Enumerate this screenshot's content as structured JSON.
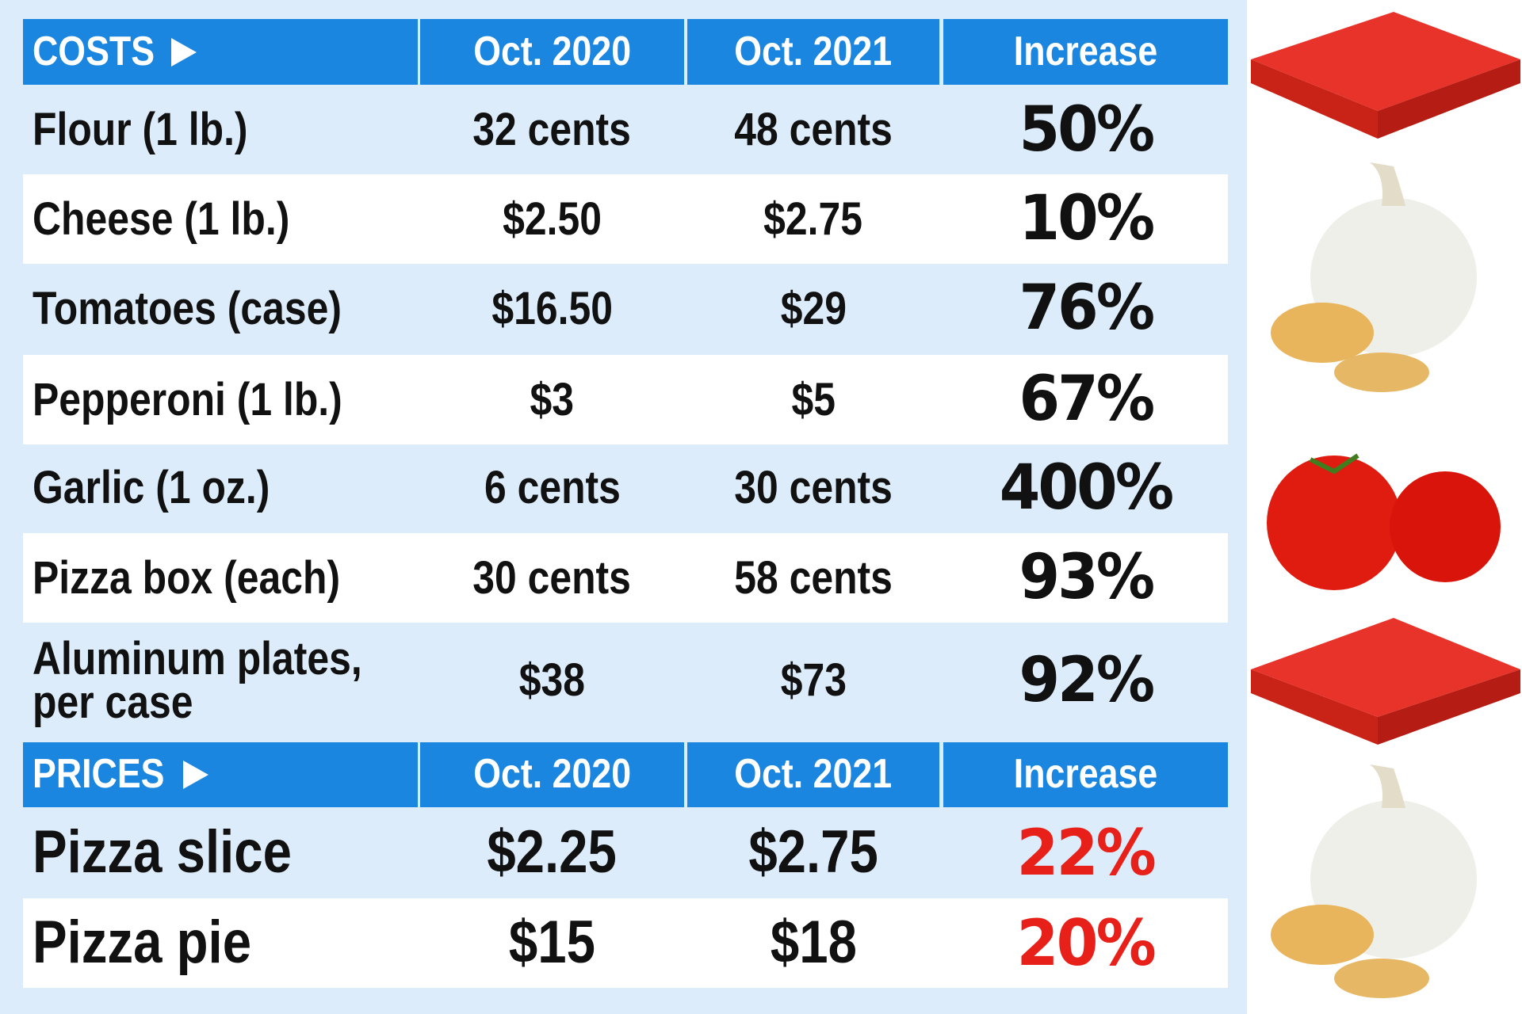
{
  "costs": {
    "header": [
      "COSTS",
      "Oct. 2020",
      "Oct. 2021",
      "Increase"
    ],
    "rows": [
      [
        "Flour (1 lb.)",
        "32 cents",
        "48 cents",
        "50%"
      ],
      [
        "Cheese (1 lb.)",
        "$2.50",
        "$2.75",
        "10%"
      ],
      [
        "Tomatoes (case)",
        "$16.50",
        "$29",
        "76%"
      ],
      [
        "Pepperoni (1 lb.)",
        "$3",
        "$5",
        "67%"
      ],
      [
        "Garlic (1 oz.)",
        "6 cents",
        "30 cents",
        "400%"
      ],
      [
        "Pizza box (each)",
        "30 cents",
        "58 cents",
        "93%"
      ],
      [
        "Aluminum plates, per case",
        "$38",
        "$73",
        "92%"
      ]
    ]
  },
  "prices": {
    "header": [
      "PRICES",
      "Oct. 2020",
      "Oct. 2021",
      "Increase"
    ],
    "rows": [
      [
        "Pizza slice",
        "$2.25",
        "$2.75",
        "22%"
      ],
      [
        "Pizza pie",
        "$15",
        "$18",
        "20%"
      ]
    ]
  }
}
